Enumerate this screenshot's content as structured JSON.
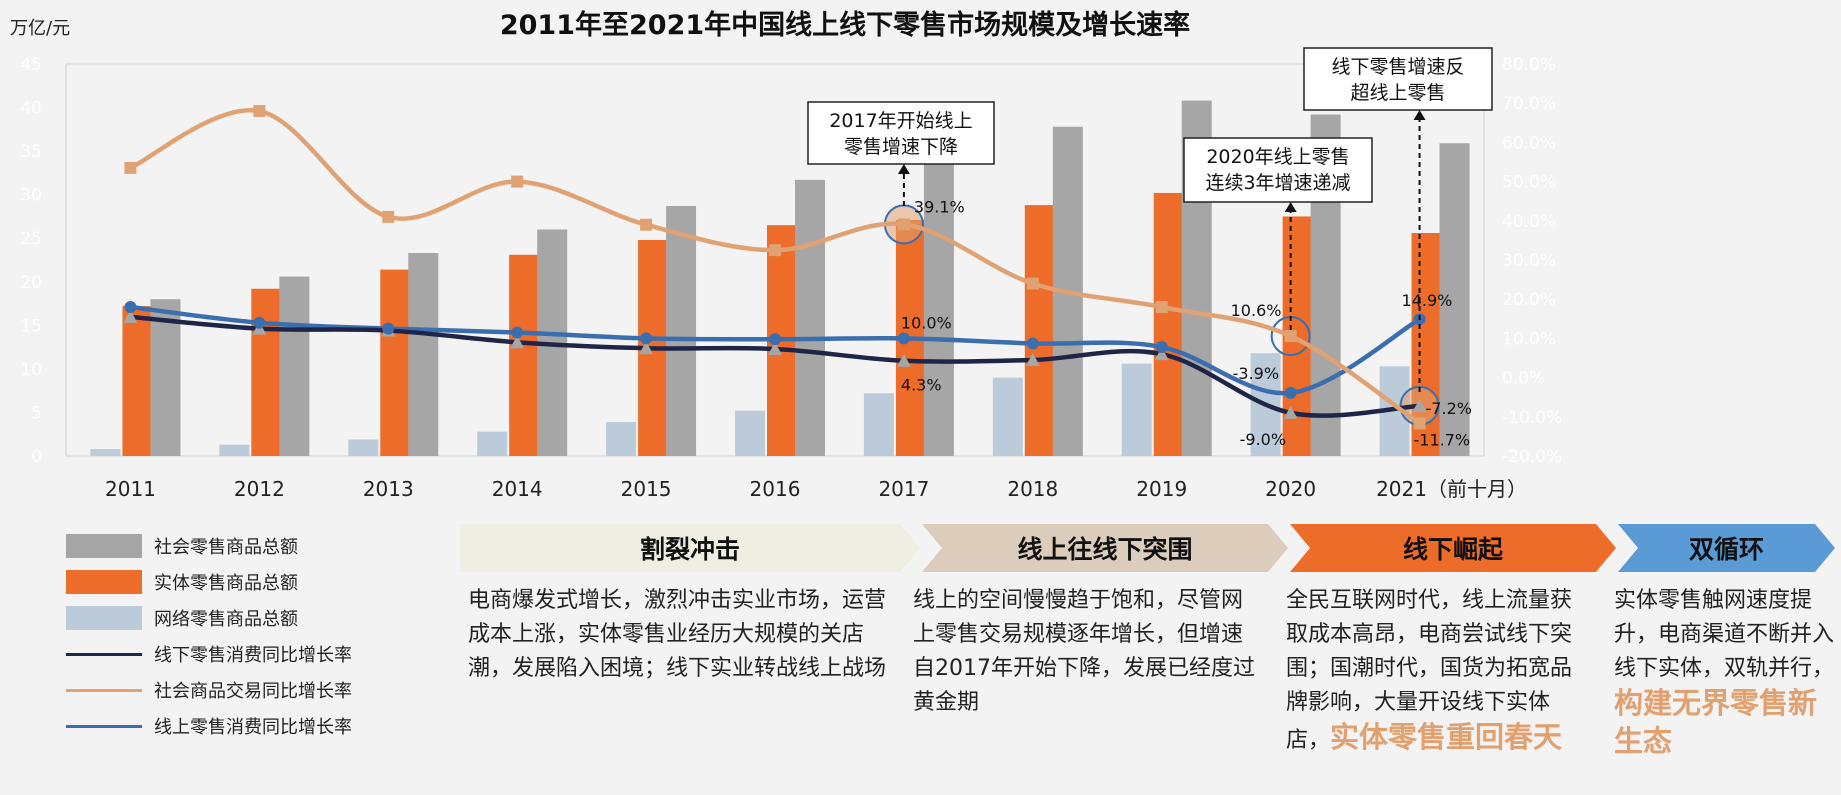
{
  "chart_data": {
    "type": "bar+line",
    "title": "2011年至2021年中国线上线下零售市场规模及增长速率",
    "y_left_unit": "万亿/元",
    "y_left_ticks": [
      "0",
      "5",
      "10",
      "15",
      "20",
      "25",
      "30",
      "35",
      "40",
      "45"
    ],
    "y_right_ticks": [
      "-20.0%",
      "-10.0%",
      "0.0%",
      "10.0%",
      "20.0%",
      "30.0%",
      "40.0%",
      "50.0%",
      "60.0%",
      "70.0%",
      "80.0%"
    ],
    "y_left_range": [
      0,
      45
    ],
    "y_right_range": [
      -20,
      80
    ],
    "categories": [
      "2011",
      "2012",
      "2013",
      "2014",
      "2015",
      "2016",
      "2017",
      "2018",
      "2019",
      "2020",
      "2021（前十月）"
    ],
    "bar_series": [
      {
        "name": "网络零售商品总额",
        "color": "#bccbd9",
        "values": [
          0.8,
          1.3,
          1.9,
          2.8,
          3.9,
          5.2,
          7.2,
          9.0,
          10.6,
          11.8,
          10.3
        ]
      },
      {
        "name": "实体零售商品总额",
        "color": "#ee6c29",
        "values": [
          17.2,
          19.2,
          21.4,
          23.1,
          24.8,
          26.5,
          27.1,
          28.8,
          30.2,
          27.5,
          25.6
        ]
      },
      {
        "name": "社会零售商品总额",
        "color": "#a6a6a6",
        "values": [
          18.0,
          20.6,
          23.3,
          26.0,
          28.7,
          31.7,
          34.3,
          37.8,
          40.8,
          39.2,
          35.9
        ]
      }
    ],
    "line_series": [
      {
        "name": "线下零售消费同比增长率",
        "color": "#1f2547",
        "marker": "triangle",
        "marker_color": "#a6a6a6",
        "values": [
          15.5,
          12.5,
          12.0,
          9.0,
          7.5,
          7.3,
          4.3,
          4.5,
          6.0,
          -9.0,
          -7.2
        ]
      },
      {
        "name": "社会商品交易同比增长率",
        "color": "#e0a272",
        "marker": "square",
        "marker_color": "#e0a272",
        "values": [
          53.5,
          68.0,
          41.0,
          50.0,
          39.0,
          32.5,
          39.1,
          24.0,
          18.0,
          10.6,
          -11.7
        ]
      },
      {
        "name": "线上零售消费同比增长率",
        "color": "#3b6eae",
        "marker": "circle",
        "marker_color": "#3b6eae",
        "values": [
          18.0,
          14.0,
          12.5,
          11.5,
          10.0,
          9.8,
          10.0,
          8.7,
          7.8,
          -3.9,
          14.9
        ]
      }
    ],
    "data_labels": [
      {
        "text": "39.1%",
        "series": 1,
        "index": 6
      },
      {
        "text": "10.0%",
        "series": 2,
        "index": 6
      },
      {
        "text": "4.3%",
        "series": 0,
        "index": 6
      },
      {
        "text": "10.6%",
        "series": 1,
        "index": 9
      },
      {
        "text": "-3.9%",
        "series": 2,
        "index": 9
      },
      {
        "text": "-9.0%",
        "series": 0,
        "index": 9
      },
      {
        "text": "14.9%",
        "series": 2,
        "index": 10
      },
      {
        "text": "-7.2%",
        "series": 0,
        "index": 10
      },
      {
        "text": "-11.7%",
        "series": 1,
        "index": 10
      }
    ],
    "annotations": [
      {
        "text_lines": [
          "2017年开始线上",
          "零售增速下降"
        ]
      },
      {
        "text_lines": [
          "2020年线上零售",
          "连续3年增速递减"
        ]
      },
      {
        "text_lines": [
          "线下零售增速反",
          "超线上零售"
        ]
      }
    ]
  },
  "legend": [
    {
      "label": "社会零售商品总额",
      "color": "#a6a6a6",
      "kind": "box"
    },
    {
      "label": "实体零售商品总额",
      "color": "#ee6c29",
      "kind": "box"
    },
    {
      "label": "网络零售商品总额",
      "color": "#bccbd9",
      "kind": "box"
    },
    {
      "label": "线下零售消费同比增长率",
      "color": "#1f2547",
      "kind": "line"
    },
    {
      "label": "社会商品交易同比增长率",
      "color": "#e0a272",
      "kind": "line"
    },
    {
      "label": "线上零售消费同比增长率",
      "color": "#3b6eae",
      "kind": "line"
    }
  ],
  "phases": [
    {
      "title": "割裂冲击",
      "bg": "#eeeee2",
      "fg": "#111111",
      "text": "电商爆发式增长，激烈冲击实业市场，运营成本上涨，实体零售业经历大规模的关店潮，发展陷入困境；线下实业转战线上战场",
      "highlight": ""
    },
    {
      "title": "线上往线下突围",
      "bg": "#dcccbb",
      "fg": "#111111",
      "text": "线上的空间慢慢趋于饱和，尽管网上零售交易规模逐年增长，但增速自2017年开始下降，发展已经度过黄金期",
      "highlight": ""
    },
    {
      "title": "线下崛起",
      "bg": "#ee6c29",
      "fg": "#111111",
      "text": "全民互联网时代，线上流量获取成本高昂，电商尝试线下突围；国潮时代，国货为拓宽品牌影响，大量开设线下实体店，",
      "highlight": "实体零售重回春天"
    },
    {
      "title": "双循环",
      "bg": "#5b9bd5",
      "fg": "#111111",
      "text": "实体零售触网速度提升，电商渠道不断并入线下实体，双轨并行，",
      "highlight": "构建无界零售新生态"
    }
  ]
}
